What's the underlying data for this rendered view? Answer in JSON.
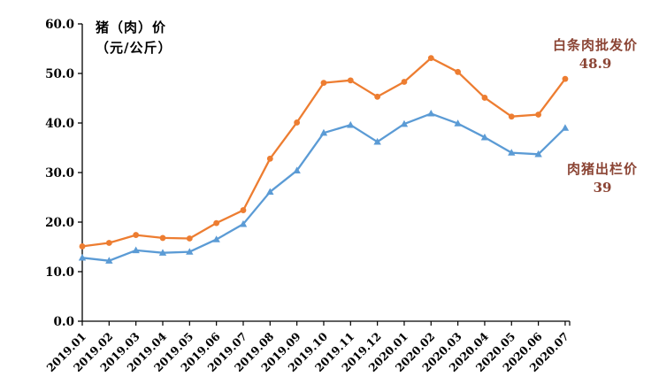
{
  "chart_data": {
    "type": "line",
    "title_line1": "猪（肉）价",
    "title_line2": "（元/公斤）",
    "xlabel": "",
    "ylabel": "元/公斤",
    "ylim": [
      0,
      60
    ],
    "y_tick_step": 10,
    "grid": false,
    "legend_position": "none",
    "axis_color": "#000000",
    "text_color": "#000000",
    "annotation_color": "#8B4434",
    "y_ticks": [
      "60.0",
      "50.0",
      "40.0",
      "30.0",
      "20.0",
      "10.0",
      "0.0"
    ],
    "categories": [
      "2019.01",
      "2019.02",
      "2019.03",
      "2019.04",
      "2019.05",
      "2019.06",
      "2019.07",
      "2019.08",
      "2019.09",
      "2019.10",
      "2019.11",
      "2019.12",
      "2020.01",
      "2020.02",
      "2020.03",
      "2020.04",
      "2020.05",
      "2020.06",
      "2020.07"
    ],
    "series": [
      {
        "key": "wholesale",
        "name": "白条肉批发价",
        "color": "#ED7D31",
        "marker": "circle",
        "values": [
          15.1,
          15.8,
          17.4,
          16.8,
          16.7,
          19.8,
          22.4,
          32.8,
          40.1,
          48.1,
          48.6,
          45.3,
          48.3,
          53.1,
          50.3,
          45.1,
          41.3,
          41.7,
          48.9
        ]
      },
      {
        "key": "farmgate",
        "name": "肉猪出栏价",
        "color": "#5B9BD5",
        "marker": "triangle",
        "values": [
          12.8,
          12.2,
          14.3,
          13.8,
          14.0,
          16.5,
          19.6,
          26.1,
          30.4,
          38.0,
          39.6,
          36.2,
          39.8,
          41.9,
          39.9,
          37.1,
          34.0,
          33.7,
          39.0
        ]
      }
    ],
    "annotations": [
      {
        "key": "wholesale",
        "label": "白条肉批发价",
        "value": "48.9"
      },
      {
        "key": "farmgate",
        "label": "肉猪出栏价",
        "value": "39"
      }
    ]
  }
}
